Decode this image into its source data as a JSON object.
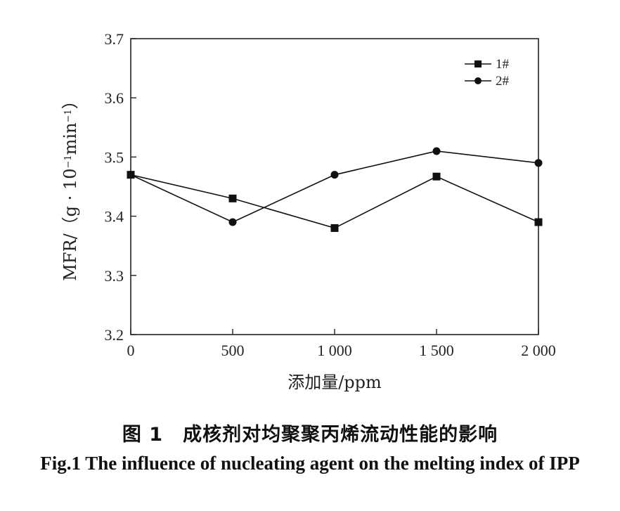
{
  "chart_data": {
    "type": "line",
    "x": [
      0,
      500,
      1000,
      1500,
      2000
    ],
    "x_tick_labels": [
      "0",
      "500",
      "1 000",
      "1 500",
      "2 000"
    ],
    "xlabel": "添加量/ppm",
    "ylabel_main": "MFR/（g · 10",
    "ylabel_sup": "−1",
    "ylabel_mid": "min",
    "ylabel_sup2": "−1",
    "ylabel_end": "）",
    "ylim": [
      3.2,
      3.7
    ],
    "xlim": [
      0,
      2000
    ],
    "y_ticks": [
      3.2,
      3.3,
      3.4,
      3.5,
      3.6,
      3.7
    ],
    "y_tick_labels": [
      "3.2",
      "3.3",
      "3.4",
      "3.5",
      "3.6",
      "3.7"
    ],
    "legend_position": "top-right",
    "grid": false,
    "series": [
      {
        "name": "1#",
        "marker": "square",
        "values": [
          3.47,
          3.43,
          3.38,
          3.467,
          3.39
        ]
      },
      {
        "name": "2#",
        "marker": "circle",
        "values": [
          3.47,
          3.39,
          3.47,
          3.51,
          3.49
        ]
      }
    ]
  },
  "caption": {
    "chinese": "图 1　成核剂对均聚聚丙烯流动性能的影响",
    "english": "Fig.1 The influence of nucleating agent on the melting index of IPP"
  }
}
